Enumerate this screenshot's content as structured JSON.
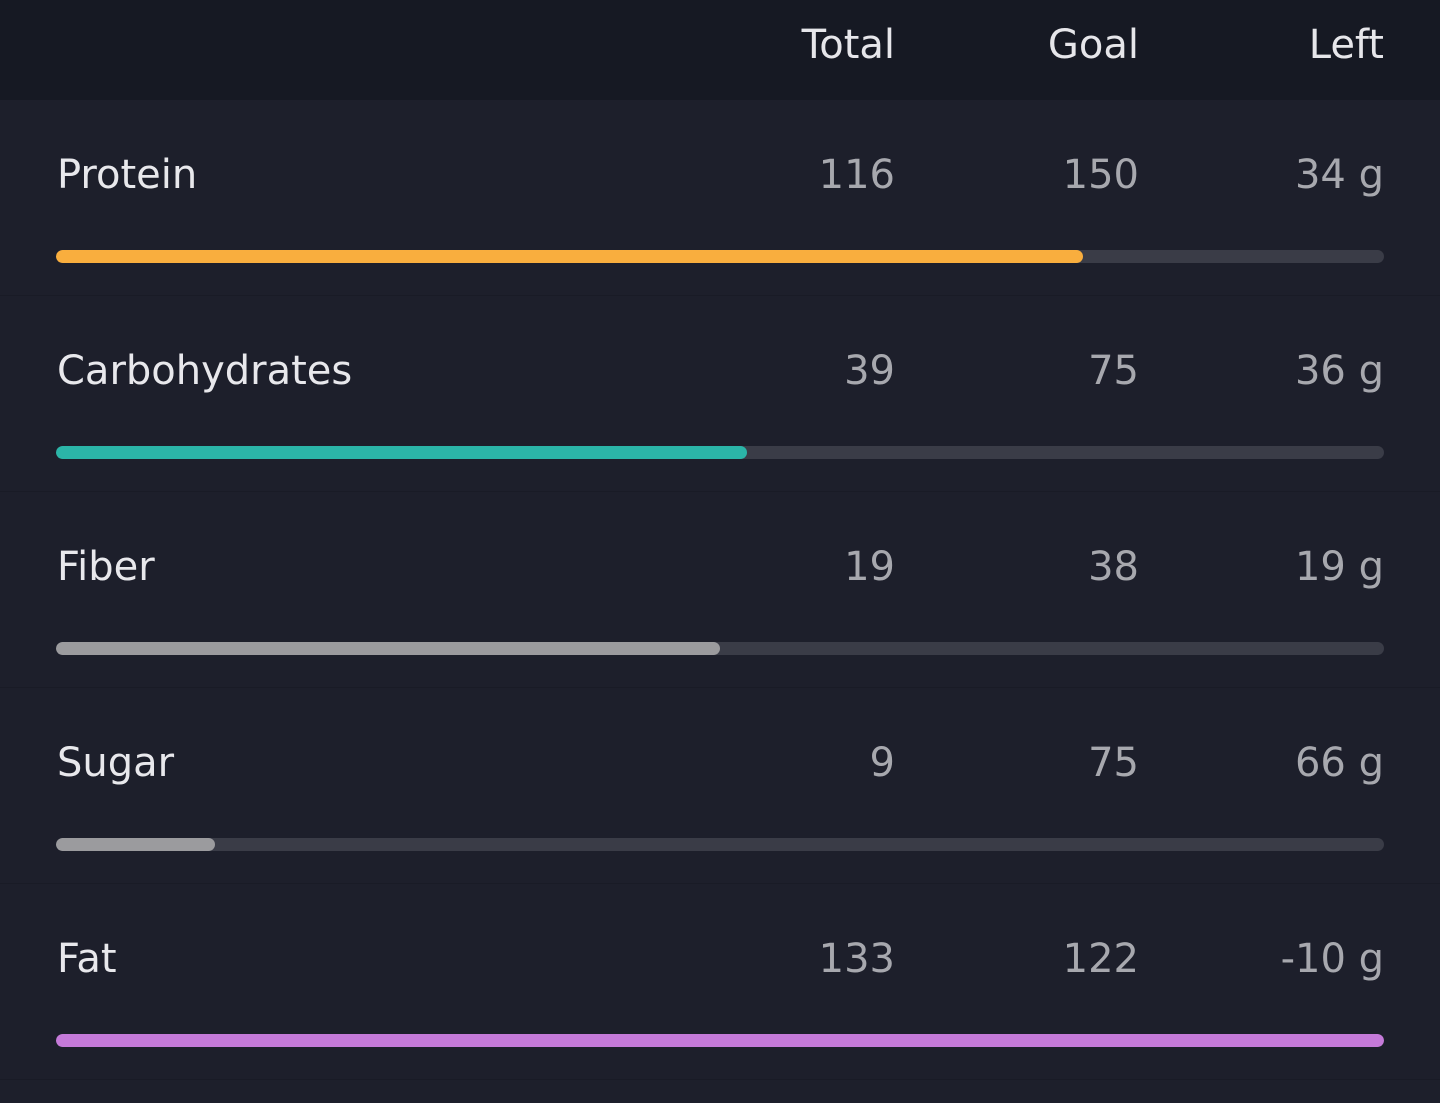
{
  "header": {
    "columns": [
      "Total",
      "Goal",
      "Left"
    ]
  },
  "rows": [
    {
      "name": "Protein",
      "total": 116,
      "goal": 150,
      "left": "34 g",
      "color": "#f9ae3e"
    },
    {
      "name": "Carbohydrates",
      "total": 39,
      "goal": 75,
      "left": "36 g",
      "color": "#2bb5a8"
    },
    {
      "name": "Fiber",
      "total": 19,
      "goal": 38,
      "left": "19 g",
      "color": "#9b9b9e"
    },
    {
      "name": "Sugar",
      "total": 9,
      "goal": 75,
      "left": "66 g",
      "color": "#9b9b9e"
    },
    {
      "name": "Fat",
      "total": 133,
      "goal": 122,
      "left": "-10 g",
      "color": "#c57ad9"
    }
  ]
}
